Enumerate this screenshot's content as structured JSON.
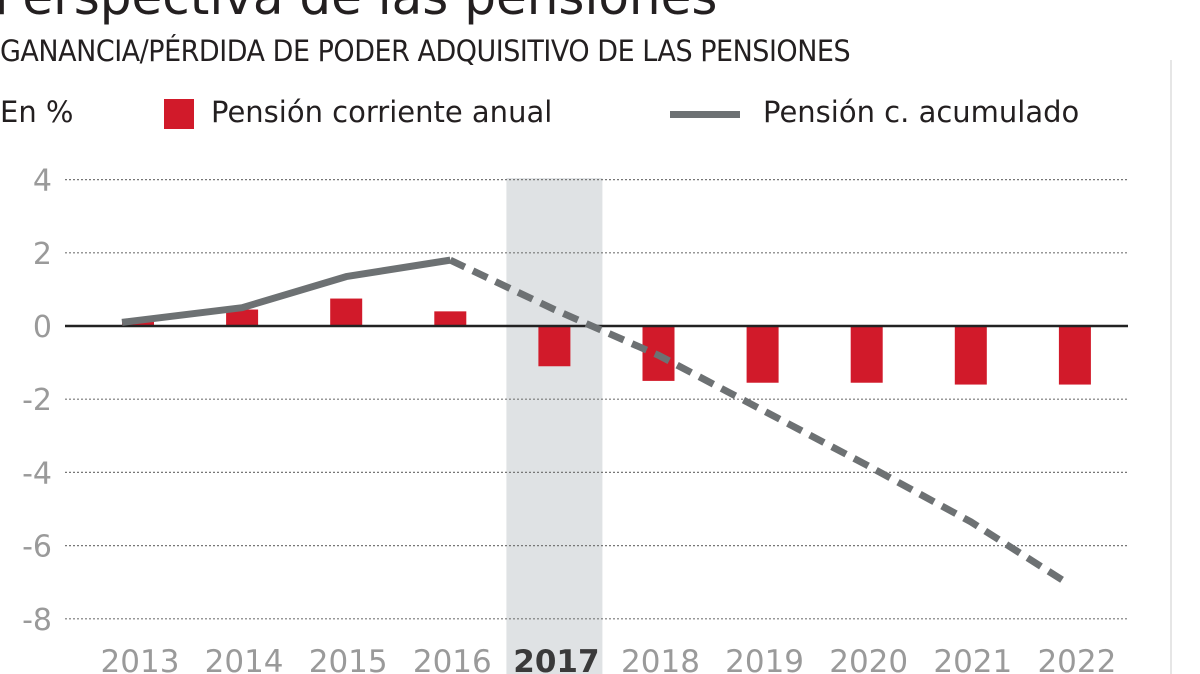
{
  "title": "Perspectiva de las pensiones",
  "subtitle": "GANANCIA/PÉRDIDA DE PODER ADQUISITIVO DE LAS PENSIONES",
  "colors": {
    "bar": "#d11a2a",
    "line": "#6d7173",
    "highlight": "#dfe2e4",
    "axis": "#222222",
    "ticks": "#9a9a9a"
  },
  "chart_data": {
    "type": "bar+line",
    "unit_label": "En %",
    "categories": [
      "2013",
      "2014",
      "2015",
      "2016",
      "2017",
      "2018",
      "2019",
      "2020",
      "2021",
      "2022"
    ],
    "highlight_category": "2017",
    "ylim": [
      -8,
      4
    ],
    "yticks": [
      "4",
      "2",
      "0",
      "-2",
      "-4",
      "-6",
      "-8"
    ],
    "grid": true,
    "legend_position": "top",
    "series": [
      {
        "name": "Pensión corriente anual",
        "type": "bar",
        "values": [
          0.15,
          0.45,
          0.75,
          0.4,
          -1.1,
          -1.5,
          -1.55,
          -1.55,
          -1.6,
          -1.6
        ]
      },
      {
        "name": "Pensión c. acumulado",
        "type": "line",
        "dashed_from": "2016",
        "values": [
          0.1,
          0.5,
          1.35,
          1.8,
          0.45,
          -0.8,
          -2.3,
          -3.8,
          -5.35,
          -6.95
        ]
      }
    ]
  }
}
